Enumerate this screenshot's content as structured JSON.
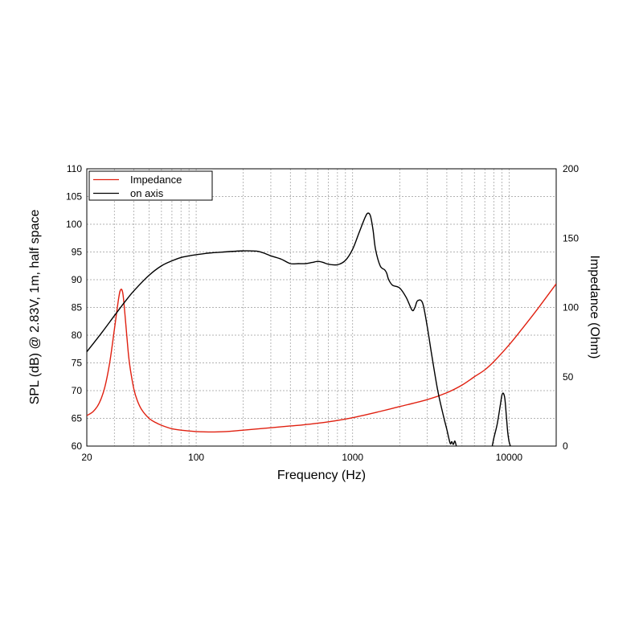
{
  "chart_data": {
    "type": "line",
    "title": "",
    "xlabel": "Frequency (Hz)",
    "ylabel_left": "SPL (dB) @ 2.83V, 1m, half space",
    "ylabel_right": "Impedance (Ohm)",
    "x_scale": "log",
    "xlim": [
      20,
      20000
    ],
    "ylim_left": [
      60,
      110
    ],
    "ylim_right": [
      0,
      200
    ],
    "x_tick_labels": [
      "20",
      "100",
      "1000",
      "10000"
    ],
    "x_ticks": [
      20,
      100,
      1000,
      10000
    ],
    "y_left_ticks": [
      60,
      65,
      70,
      75,
      80,
      85,
      90,
      95,
      100,
      105,
      110
    ],
    "y_right_ticks": [
      0,
      50,
      100,
      150,
      200
    ],
    "grid": true,
    "legend_position": "top-left",
    "colors": {
      "impedance": "#e02010",
      "on_axis": "#000000",
      "grid": "#9a9a9a"
    },
    "series": [
      {
        "name": "Impedance",
        "axis": "right",
        "color": "#e02010",
        "x": [
          20,
          22,
          24,
          26,
          28,
          30,
          32,
          33,
          34,
          35,
          36,
          37,
          38,
          40,
          42,
          45,
          50,
          55,
          60,
          70,
          80,
          100,
          120,
          150,
          200,
          300,
          400,
          500,
          700,
          1000,
          1500,
          2000,
          3000,
          4000,
          5000,
          6000,
          7000,
          8000,
          10000,
          12000,
          15000,
          20000
        ],
        "y": [
          22,
          25,
          31,
          42,
          60,
          84,
          107,
          113,
          110,
          96,
          80,
          65,
          55,
          41,
          33,
          26,
          20,
          17,
          15,
          12.5,
          11.5,
          10.5,
          10.2,
          10.4,
          11.5,
          13.2,
          14.5,
          15.5,
          17.5,
          20.5,
          25,
          28.5,
          33.5,
          38.5,
          44,
          50,
          55,
          61,
          73,
          84,
          98,
          117
        ]
      },
      {
        "name": "on axis",
        "axis": "left",
        "color": "#000000",
        "segments": [
          {
            "x": [
              20,
              25,
              30,
              35,
              40,
              50,
              60,
              70,
              80,
              90,
              100,
              120,
              150,
              200,
              250,
              300,
              350,
              400,
              450,
              500,
              550,
              600,
              650,
              700,
              800,
              900,
              1000,
              1100,
              1200,
              1250,
              1300,
              1350,
              1400,
              1500,
              1600,
              1650,
              1700,
              1800,
              2000,
              2200,
              2400,
              2500,
              2600,
              2800,
              3000,
              3200,
              3500,
              3800,
              4000,
              4200,
              4300,
              4400,
              4500,
              4600
            ],
            "y": [
              77,
              80.5,
              83.5,
              86,
              88,
              90.8,
              92.5,
              93.4,
              94,
              94.3,
              94.5,
              94.8,
              95,
              95.2,
              95.1,
              94.3,
              93.7,
              92.9,
              92.9,
              92.9,
              93.1,
              93.3,
              93.1,
              92.8,
              92.7,
              93.5,
              95.5,
              98.5,
              101.2,
              102,
              101.5,
              99,
              95.5,
              92.5,
              91.8,
              91.2,
              90,
              89,
              88.5,
              86.8,
              84.5,
              85,
              86.2,
              85.8,
              81.5,
              76.5,
              70,
              65.5,
              63,
              60.5,
              60.8,
              60.3,
              60.9,
              60
            ]
          },
          {
            "x": [
              7800,
              8000,
              8400,
              8800,
              9000,
              9200,
              9400,
              9600,
              9800,
              10000,
              10200
            ],
            "y": [
              60,
              61.5,
              64,
              67.5,
              69.2,
              69.5,
              68.5,
              65.5,
              62.5,
              60.8,
              60
            ]
          }
        ]
      }
    ]
  }
}
